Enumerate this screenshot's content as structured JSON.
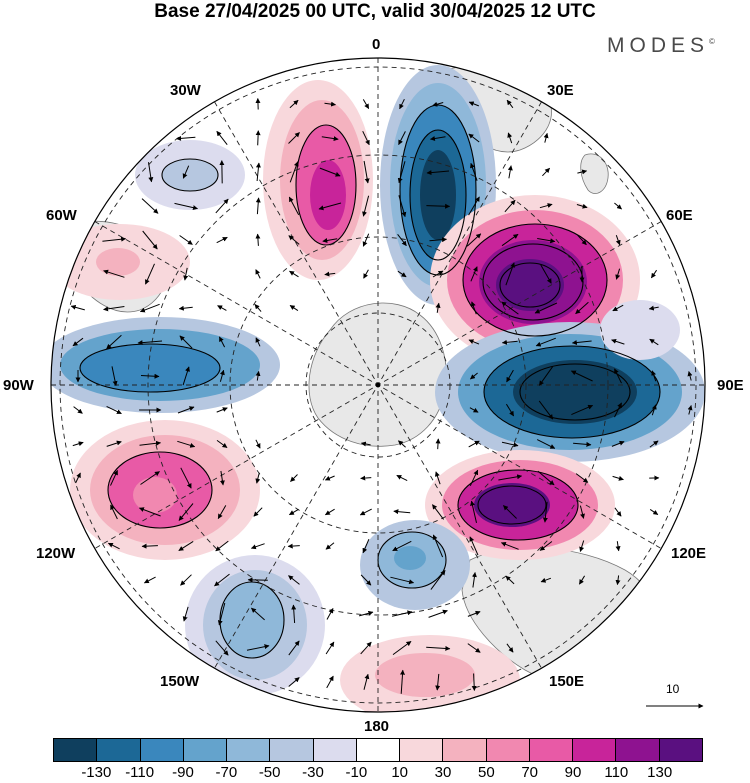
{
  "title": "Base 27/04/2025 00 UTC, valid 30/04/2025 12 UTC",
  "brand": "MODES",
  "brand_mark": "©",
  "map": {
    "projection": "polar-stereographic-south",
    "meridian_labels": {
      "lon_0": "0",
      "lon_30e": "30E",
      "lon_60e": "60E",
      "lon_90e": "90E",
      "lon_120e": "120E",
      "lon_150e": "150E",
      "lon_180": "180",
      "lon_150w": "150W",
      "lon_120w": "120W",
      "lon_90w": "90W",
      "lon_60w": "60W",
      "lon_30w": "30W"
    },
    "reference_vector_label": "10",
    "land_color": "#e8e8e8",
    "coast_color": "#777777"
  },
  "colorbar": {
    "colors": [
      "#0f3f5e",
      "#1c6896",
      "#3a87bd",
      "#64a3cc",
      "#8fb8d9",
      "#b6c7e0",
      "#dcdcee",
      "#ffffff",
      "#f8d8dc",
      "#f4b2bf",
      "#f188b0",
      "#e85aa6",
      "#c8249a",
      "#8e1290",
      "#5a1080"
    ],
    "tick_labels": [
      "-130",
      "-110",
      "-90",
      "-70",
      "-50",
      "-30",
      "-10",
      "10",
      "30",
      "50",
      "70",
      "90",
      "110",
      "130"
    ]
  }
}
